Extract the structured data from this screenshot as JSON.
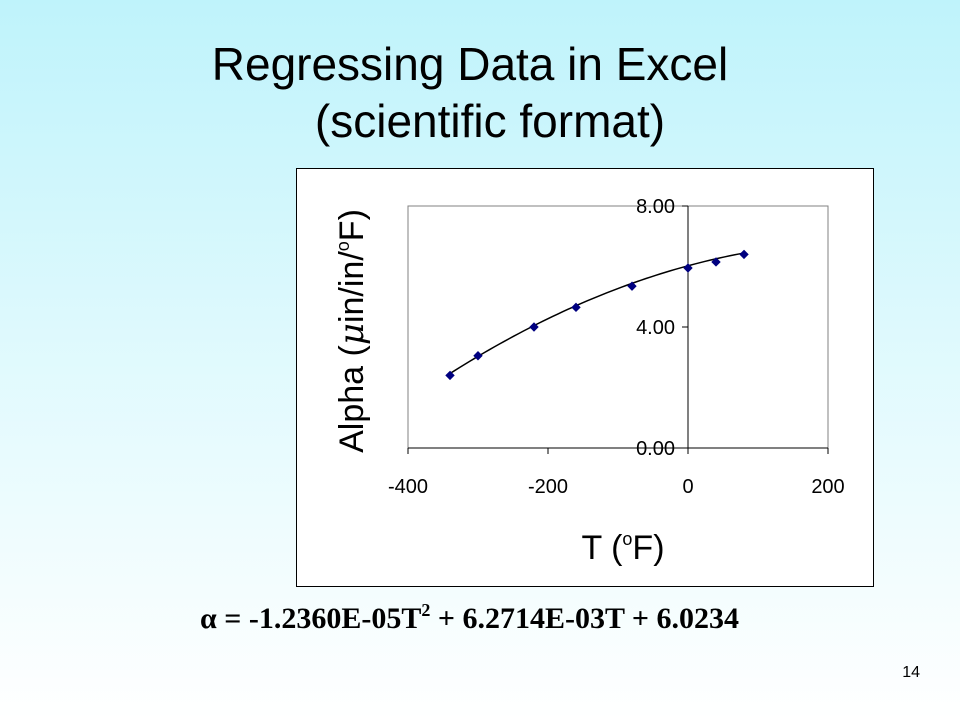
{
  "slide": {
    "title_line1": "Regressing Data in Excel",
    "title_line2": "(scientific format)",
    "page_number": "14"
  },
  "equation": {
    "lhs": "α",
    "eq": " = ",
    "t1": "-1.2360E-05T",
    "exp": "2",
    "rest": " + 6.2714E-03T + 6.0234"
  },
  "chart_data": {
    "type": "scatter",
    "xlabel_pre": "T (",
    "xlabel_deg": "o",
    "xlabel_post": "F)",
    "ylabel_pre": "Alpha (",
    "ylabel_mu": "μ",
    "ylabel_mid": "in/in/",
    "ylabel_deg": "o",
    "ylabel_post": "F)",
    "xlim": [
      -400,
      200
    ],
    "ylim": [
      0,
      8
    ],
    "x_ticks": [
      "-400",
      "-200",
      "0",
      "200"
    ],
    "y_ticks": [
      "0.00",
      "4.00",
      "8.00"
    ],
    "x_tick_values": [
      -400,
      -200,
      0,
      200
    ],
    "y_tick_values": [
      0,
      4,
      8
    ],
    "series": [
      {
        "x": [
          -340,
          -300,
          -220,
          -160,
          -80,
          0,
          40,
          80
        ],
        "y": [
          2.4,
          3.05,
          4.0,
          4.65,
          5.35,
          5.95,
          6.15,
          6.4
        ],
        "marker": "diamond",
        "color": "#000080"
      }
    ],
    "trendline": {
      "type": "polynomial",
      "coefficients": [
        -1.236e-05,
        0.0062714,
        6.0234
      ],
      "x_range": [
        -340,
        80
      ],
      "color": "#000000"
    },
    "grid": false
  }
}
